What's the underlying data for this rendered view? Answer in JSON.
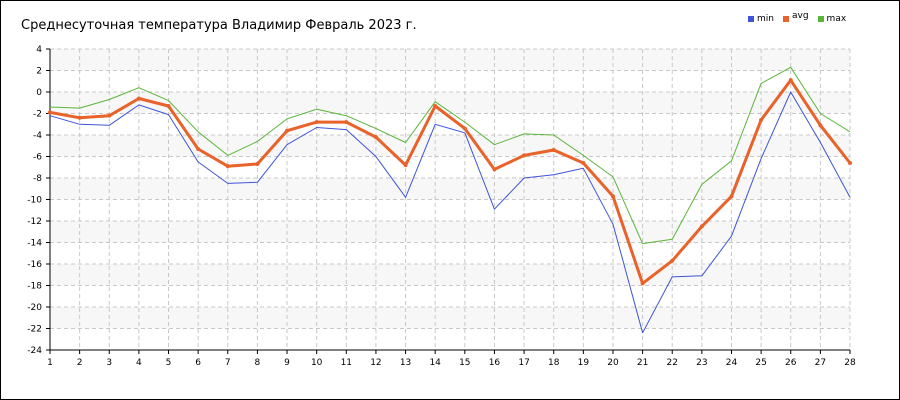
{
  "chart_data": {
    "type": "line",
    "title": "Среднесуточная температура Владимир  Февраль 2023 г.",
    "xlabel": "",
    "ylabel": "",
    "x": [
      1,
      2,
      3,
      4,
      5,
      6,
      7,
      8,
      9,
      10,
      11,
      12,
      13,
      14,
      15,
      16,
      17,
      18,
      19,
      20,
      21,
      22,
      23,
      24,
      25,
      26,
      27,
      28
    ],
    "ylim": [
      -24,
      4
    ],
    "yticks": [
      4,
      2,
      0,
      -2,
      -4,
      -6,
      -8,
      -10,
      -12,
      -14,
      -16,
      -18,
      -20,
      -22,
      -24
    ],
    "grid": true,
    "legend_position": "top-right",
    "series": [
      {
        "name": "min",
        "color": "#3f54d8",
        "values": [
          -2.2,
          -3.0,
          -3.1,
          -1.2,
          -2.1,
          -6.5,
          -8.5,
          -8.4,
          -4.9,
          -3.3,
          -3.5,
          -6.0,
          -9.8,
          -3.0,
          -3.8,
          -10.9,
          -8.0,
          -7.7,
          -7.1,
          -12.3,
          -22.4,
          -17.2,
          -17.1,
          -13.4,
          -6.2,
          0.0,
          -4.7,
          -9.8
        ]
      },
      {
        "name": "avg",
        "color": "#e8622a",
        "values": [
          -1.9,
          -2.4,
          -2.2,
          -0.6,
          -1.3,
          -5.3,
          -6.9,
          -6.7,
          -3.6,
          -2.8,
          -2.8,
          -4.2,
          -6.8,
          -1.3,
          -3.4,
          -7.2,
          -5.9,
          -5.4,
          -6.6,
          -9.7,
          -17.8,
          -15.7,
          -12.5,
          -9.7,
          -2.6,
          1.1,
          -3.1,
          -6.6
        ]
      },
      {
        "name": "max",
        "color": "#5bb53a",
        "values": [
          -1.4,
          -1.5,
          -0.7,
          0.4,
          -0.8,
          -3.7,
          -5.9,
          -4.6,
          -2.5,
          -1.6,
          -2.2,
          -3.4,
          -4.7,
          -0.9,
          -2.8,
          -4.9,
          -3.9,
          -4.0,
          -5.9,
          -7.9,
          -14.1,
          -13.7,
          -8.6,
          -6.4,
          0.8,
          2.3,
          -2.0,
          -3.7
        ]
      }
    ]
  }
}
